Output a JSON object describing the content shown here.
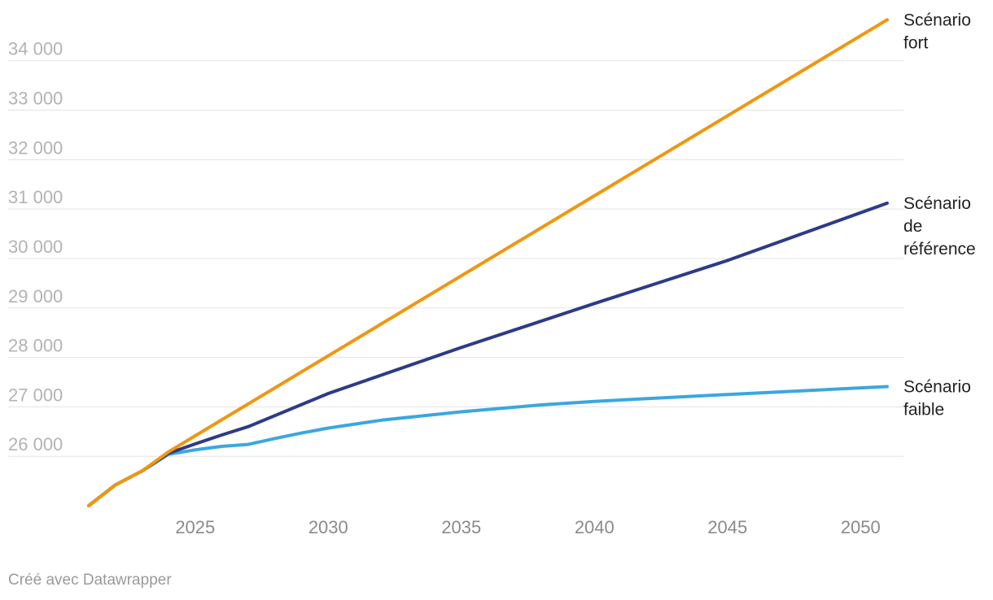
{
  "chart_data": {
    "type": "line",
    "title": "",
    "xlabel": "",
    "ylabel": "",
    "xlim": [
      2021,
      2051
    ],
    "ylim": [
      25000,
      34900
    ],
    "x_ticks": [
      2025,
      2030,
      2035,
      2040,
      2045,
      2050
    ],
    "y_ticks": [
      26000,
      27000,
      28000,
      29000,
      30000,
      31000,
      32000,
      33000,
      34000
    ],
    "y_tick_labels": [
      "26 000",
      "27 000",
      "28 000",
      "29 000",
      "30 000",
      "31 000",
      "32 000",
      "33 000",
      "34 000"
    ],
    "grid": true,
    "legend": "line-end labels on right",
    "series": [
      {
        "name": "Scénario fort",
        "label_lines": [
          "Scénario",
          "fort"
        ],
        "color": "#f0960e",
        "x": [
          2021,
          2022,
          2023,
          2024,
          2051
        ],
        "y": [
          25000,
          25420,
          25700,
          26090,
          34830
        ]
      },
      {
        "name": "Scénario de référence",
        "label_lines": [
          "Scénario",
          "de",
          "référence"
        ],
        "color": "#2d3b86",
        "x": [
          2021,
          2022,
          2023,
          2024,
          2025,
          2026,
          2027,
          2030,
          2035,
          2040,
          2045,
          2051
        ],
        "y": [
          25000,
          25420,
          25700,
          26060,
          26250,
          26430,
          26600,
          27270,
          28200,
          29090,
          29960,
          31120
        ]
      },
      {
        "name": "Scénario faible",
        "label_lines": [
          "Scénario",
          "faible"
        ],
        "color": "#3aa7e0",
        "x": [
          2021,
          2022,
          2023,
          2024,
          2025,
          2026,
          2027,
          2028,
          2029,
          2030,
          2032,
          2035,
          2038,
          2040,
          2045,
          2051
        ],
        "y": [
          25000,
          25420,
          25700,
          26040,
          26130,
          26200,
          26240,
          26360,
          26470,
          26570,
          26730,
          26900,
          27040,
          27110,
          27250,
          27410
        ]
      }
    ]
  },
  "footer": {
    "credit": "Créé avec Datawrapper"
  }
}
